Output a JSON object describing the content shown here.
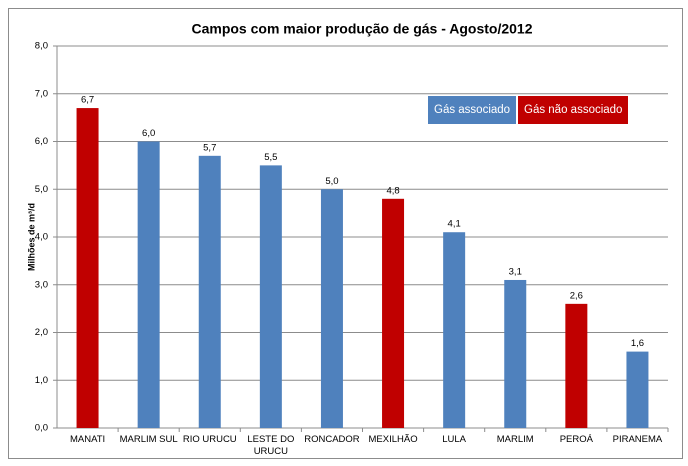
{
  "chart_data": {
    "type": "bar",
    "title": "Campos com maior produção de gás - Agosto/2012",
    "y_label": "Milhões de m³/d",
    "categories": [
      "MANATI",
      "MARLIM SUL",
      "RIO URUCU",
      "LESTE DO URUCU",
      "RONCADOR",
      "MEXILHÃO",
      "LULA",
      "MARLIM",
      "PEROÁ",
      "PIRANEMA"
    ],
    "values": [
      6.7,
      6.0,
      5.7,
      5.5,
      5.0,
      4.8,
      4.1,
      3.1,
      2.6,
      1.6
    ],
    "value_labels": [
      "6,7",
      "6,0",
      "5,7",
      "5,5",
      "5,0",
      "4,8",
      "4,1",
      "3,1",
      "2,6",
      "1,6"
    ],
    "colors": [
      "#c00000",
      "#4f81bd",
      "#4f81bd",
      "#4f81bd",
      "#4f81bd",
      "#c00000",
      "#4f81bd",
      "#4f81bd",
      "#c00000",
      "#4f81bd"
    ],
    "legend": [
      {
        "name": "Gás associado",
        "color": "#4f81bd"
      },
      {
        "name": "Gás não associado",
        "color": "#c00000"
      }
    ],
    "ylim": [
      0,
      8
    ],
    "yticks": [
      {
        "value": 0,
        "label": "0,0"
      },
      {
        "value": 1,
        "label": "1,0"
      },
      {
        "value": 2,
        "label": "2,0"
      },
      {
        "value": 3,
        "label": "3,0"
      },
      {
        "value": 4,
        "label": "4,0"
      },
      {
        "value": 5,
        "label": "5,0"
      },
      {
        "value": 6,
        "label": "6,0"
      },
      {
        "value": 7,
        "label": "7,0"
      },
      {
        "value": 8,
        "label": "8,0"
      }
    ],
    "grid": true
  }
}
